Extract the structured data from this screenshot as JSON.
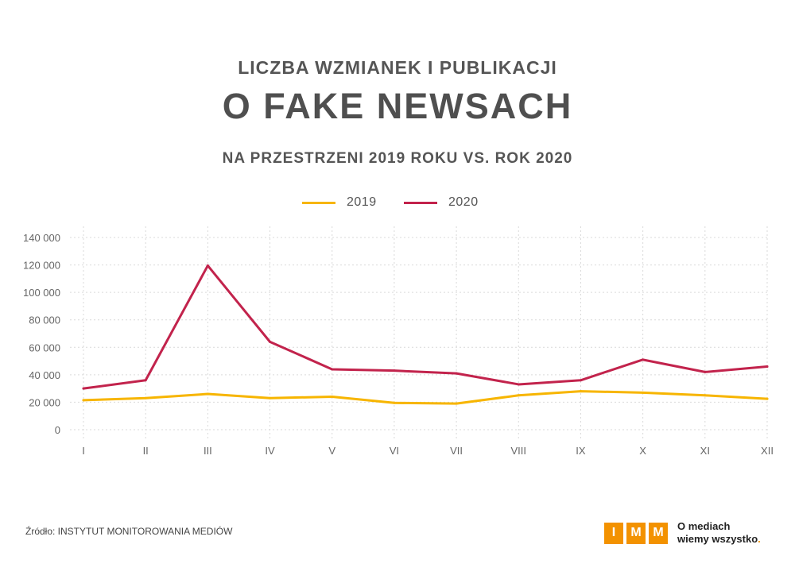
{
  "header": {
    "title_top": "LICZBA WZMIANEK I PUBLIKACJI",
    "title_main": "O FAKE NEWSACH",
    "subtitle": "NA PRZESTRZENI 2019 ROKU VS. ROK 2020"
  },
  "footer": {
    "source": "Źródło: INSTYTUT MONITOROWANIA MEDIÓW",
    "brand_letters": [
      "I",
      "M",
      "M"
    ],
    "brand_tagline_1": "O mediach",
    "brand_tagline_2": "wiemy wszystko",
    "brand_dot": "."
  },
  "colors": {
    "series_2019": "#f7b500",
    "series_2020": "#c2234c",
    "grid": "#d9d9d9",
    "brand": "#f39200"
  },
  "chart_data": {
    "type": "line",
    "categories": [
      "I",
      "II",
      "III",
      "IV",
      "V",
      "VI",
      "VII",
      "VIII",
      "IX",
      "X",
      "XI",
      "XII"
    ],
    "y_tick_labels": [
      "0",
      "20 000",
      "40 000",
      "60 000",
      "80 000",
      "100 000",
      "120 000",
      "140 000"
    ],
    "ylim": [
      0,
      140000
    ],
    "ytick_step": 20000,
    "grid": true,
    "legend_position": "top-center",
    "series": [
      {
        "name": "2019",
        "color": "#f7b500",
        "values": [
          21500,
          23000,
          26000,
          23000,
          24000,
          19500,
          19000,
          25000,
          28000,
          27000,
          25000,
          22500
        ]
      },
      {
        "name": "2020",
        "color": "#c2234c",
        "values": [
          30000,
          36000,
          119500,
          64000,
          44000,
          43000,
          41000,
          33000,
          36000,
          51000,
          42000,
          46000
        ]
      }
    ]
  }
}
